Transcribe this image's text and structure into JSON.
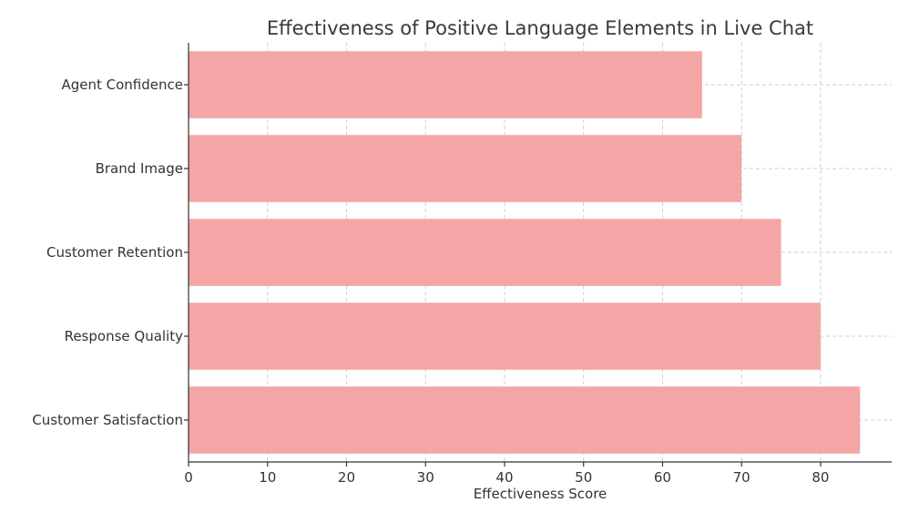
{
  "chart_data": {
    "type": "bar",
    "orientation": "horizontal",
    "title": "Effectiveness of Positive Language Elements in Live Chat",
    "xlabel": "Effectiveness Score",
    "ylabel": "",
    "categories": [
      "Customer Satisfaction",
      "Response Quality",
      "Customer Retention",
      "Brand Image",
      "Agent Confidence"
    ],
    "values": [
      85,
      80,
      75,
      70,
      65
    ],
    "xlim": [
      0,
      89
    ],
    "xticks": [
      0,
      10,
      20,
      30,
      40,
      50,
      60,
      70,
      80
    ],
    "bar_color": "#f4a6a6",
    "grid": true,
    "legend": false
  }
}
